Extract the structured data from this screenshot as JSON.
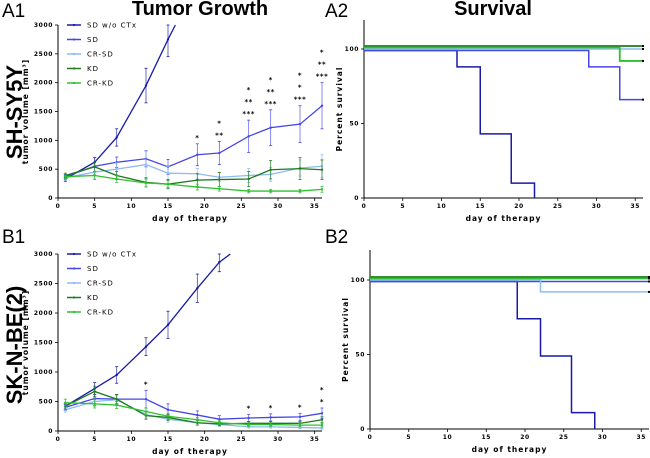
{
  "figure": {
    "column_titles": [
      "Tumor Growth",
      "Survival"
    ],
    "row_labels": [
      "SH-SY5Y",
      "SK-N-BE(2)"
    ],
    "panel_letters": [
      "A1",
      "A2",
      "B1",
      "B2"
    ]
  },
  "series_styles": [
    {
      "name": "SD w/o CTx",
      "color": "#1a1aa8"
    },
    {
      "name": "SD",
      "color": "#4646e6"
    },
    {
      "name": "CR-SD",
      "color": "#8cbcf0"
    },
    {
      "name": "KD",
      "color": "#1e7a1e"
    },
    {
      "name": "CR-KD",
      "color": "#2ec02e"
    }
  ],
  "chart_data": [
    {
      "id": "A1",
      "type": "line",
      "title": "Tumor Growth",
      "row_label": "SH-SY5Y",
      "xlabel": "day of therapy",
      "ylabel": "tumor volume [mm³]",
      "xlim": [
        0,
        36
      ],
      "ylim": [
        0,
        3000
      ],
      "xticks": [
        0,
        5,
        10,
        15,
        20,
        25,
        30,
        35
      ],
      "yticks": [
        0,
        500,
        1000,
        1500,
        2000,
        2500,
        3000
      ],
      "legend": "top-left",
      "series": [
        {
          "name": "SD w/o CTx",
          "x": [
            1,
            5,
            8,
            12,
            15,
            16
          ],
          "y": [
            330,
            620,
            1050,
            1950,
            2750,
            3000
          ],
          "err": [
            40,
            80,
            150,
            300,
            300,
            0
          ]
        },
        {
          "name": "SD",
          "x": [
            1,
            5,
            8,
            12,
            15,
            19,
            22,
            26,
            29,
            33,
            36
          ],
          "y": [
            370,
            550,
            620,
            680,
            540,
            750,
            780,
            1070,
            1220,
            1280,
            1600
          ],
          "err": [
            40,
            150,
            90,
            140,
            130,
            190,
            200,
            280,
            310,
            320,
            400
          ]
        },
        {
          "name": "CR-SD",
          "x": [
            1,
            5,
            8,
            12,
            15,
            19,
            22,
            26,
            29,
            33,
            36
          ],
          "y": [
            350,
            450,
            500,
            580,
            430,
            420,
            360,
            390,
            410,
            520,
            550
          ],
          "err": [
            40,
            120,
            110,
            230,
            120,
            90,
            80,
            120,
            120,
            140,
            200
          ]
        },
        {
          "name": "KD",
          "x": [
            1,
            5,
            8,
            12,
            15,
            19,
            22,
            26,
            29,
            33,
            36
          ],
          "y": [
            390,
            540,
            390,
            270,
            240,
            310,
            320,
            330,
            490,
            510,
            490
          ],
          "err": [
            40,
            80,
            70,
            80,
            80,
            110,
            120,
            130,
            160,
            190,
            170
          ]
        },
        {
          "name": "CR-KD",
          "x": [
            1,
            5,
            8,
            12,
            15,
            19,
            22,
            26,
            29,
            33,
            36
          ],
          "y": [
            370,
            390,
            330,
            260,
            240,
            190,
            160,
            120,
            120,
            120,
            150
          ],
          "err": [
            30,
            70,
            60,
            70,
            60,
            50,
            40,
            30,
            30,
            30,
            50
          ]
        }
      ],
      "annotations": [
        {
          "x": 19,
          "labels": [
            "*"
          ]
        },
        {
          "x": 22,
          "labels": [
            "*",
            "**"
          ]
        },
        {
          "x": 26,
          "labels": [
            "*",
            "**",
            "***"
          ]
        },
        {
          "x": 29,
          "labels": [
            "*",
            "**",
            "***"
          ]
        },
        {
          "x": 33,
          "labels": [
            "*",
            "*",
            "***"
          ]
        },
        {
          "x": 36,
          "labels": [
            "*",
            "**",
            "***"
          ]
        }
      ]
    },
    {
      "id": "A2",
      "type": "line",
      "subtype": "kaplan-meier",
      "title": "Survival",
      "xlabel": "day of therapy",
      "ylabel": "Percent survival",
      "xlim": [
        0,
        36
      ],
      "ylim": [
        0,
        120
      ],
      "xticks": [
        0,
        5,
        10,
        15,
        20,
        25,
        30,
        35
      ],
      "yticks": [
        0,
        50,
        100
      ],
      "series": [
        {
          "name": "SD w/o CTx",
          "steps": [
            [
              0,
              99
            ],
            [
              12,
              88
            ],
            [
              15,
              43
            ],
            [
              19,
              10
            ],
            [
              22,
              0
            ]
          ]
        },
        {
          "name": "SD",
          "steps": [
            [
              0,
              99
            ],
            [
              29,
              88
            ],
            [
              33,
              66
            ],
            [
              36,
              66
            ]
          ]
        },
        {
          "name": "CR-SD",
          "steps": [
            [
              0,
              100
            ],
            [
              36,
              100
            ]
          ]
        },
        {
          "name": "KD",
          "steps": [
            [
              0,
              102
            ],
            [
              36,
              102
            ]
          ]
        },
        {
          "name": "CR-KD",
          "steps": [
            [
              0,
              101
            ],
            [
              33,
              92
            ],
            [
              36,
              92
            ]
          ]
        }
      ]
    },
    {
      "id": "B1",
      "type": "line",
      "row_label": "SK-N-BE(2)",
      "xlabel": "day of therapy",
      "ylabel": "tumor volume [mm³]",
      "xlim": [
        0,
        36
      ],
      "ylim": [
        0,
        3000
      ],
      "xticks": [
        0,
        5,
        10,
        15,
        20,
        25,
        30,
        35
      ],
      "yticks": [
        0,
        500,
        1000,
        1500,
        2000,
        2500,
        3000
      ],
      "legend": "top-left",
      "series": [
        {
          "name": "SD w/o CTx",
          "x": [
            1,
            5,
            8,
            12,
            15,
            19,
            22,
            23.5
          ],
          "y": [
            420,
            720,
            950,
            1430,
            1800,
            2420,
            2860,
            3000
          ],
          "err": [
            50,
            100,
            140,
            150,
            230,
            240,
            160,
            0
          ]
        },
        {
          "name": "SD",
          "x": [
            1,
            5,
            8,
            12,
            15,
            19,
            22,
            26,
            29,
            33,
            36
          ],
          "y": [
            400,
            550,
            540,
            540,
            360,
            270,
            200,
            220,
            230,
            240,
            300
          ],
          "err": [
            50,
            120,
            80,
            150,
            100,
            70,
            60,
            60,
            60,
            60,
            90
          ]
        },
        {
          "name": "CR-SD",
          "x": [
            1,
            5,
            8,
            12,
            15,
            19,
            22,
            26,
            29,
            33,
            36
          ],
          "y": [
            360,
            500,
            530,
            280,
            200,
            140,
            110,
            70,
            70,
            60,
            50
          ],
          "err": [
            40,
            80,
            70,
            60,
            50,
            40,
            30,
            20,
            20,
            20,
            20
          ]
        },
        {
          "name": "KD",
          "x": [
            1,
            5,
            8,
            12,
            15,
            19,
            22,
            26,
            29,
            33,
            36
          ],
          "y": [
            420,
            670,
            540,
            260,
            230,
            140,
            120,
            130,
            130,
            130,
            190
          ],
          "err": [
            50,
            90,
            80,
            60,
            50,
            40,
            30,
            30,
            30,
            30,
            50
          ]
        },
        {
          "name": "CR-KD",
          "x": [
            1,
            5,
            8,
            12,
            15,
            19,
            22,
            26,
            29,
            33,
            36
          ],
          "y": [
            480,
            460,
            440,
            330,
            250,
            190,
            140,
            110,
            110,
            100,
            100
          ],
          "err": [
            60,
            70,
            60,
            60,
            50,
            40,
            30,
            30,
            30,
            30,
            30
          ]
        }
      ],
      "annotations": [
        {
          "x": 12,
          "labels": [
            "*"
          ]
        },
        {
          "x": 26,
          "labels": [
            "*"
          ]
        },
        {
          "x": 29,
          "labels": [
            "*"
          ]
        },
        {
          "x": 33,
          "labels": [
            "*"
          ]
        },
        {
          "x": 36,
          "labels": [
            "*",
            "*"
          ]
        }
      ]
    },
    {
      "id": "B2",
      "type": "line",
      "subtype": "kaplan-meier",
      "xlabel": "day of therapy",
      "ylabel": "Percent survival",
      "xlim": [
        0,
        36
      ],
      "ylim": [
        0,
        120
      ],
      "xticks": [
        0,
        5,
        10,
        15,
        20,
        25,
        30,
        35
      ],
      "yticks": [
        0,
        50,
        100
      ],
      "series": [
        {
          "name": "SD w/o CTx",
          "steps": [
            [
              0,
              99
            ],
            [
              19,
              74
            ],
            [
              22,
              49
            ],
            [
              26,
              11
            ],
            [
              29,
              0
            ]
          ]
        },
        {
          "name": "SD",
          "steps": [
            [
              0,
              99
            ],
            [
              36,
              99
            ]
          ]
        },
        {
          "name": "CR-SD",
          "steps": [
            [
              0,
              100
            ],
            [
              22,
              92
            ],
            [
              36,
              92
            ]
          ]
        },
        {
          "name": "KD",
          "steps": [
            [
              0,
              102
            ],
            [
              36,
              102
            ]
          ]
        },
        {
          "name": "CR-KD",
          "steps": [
            [
              0,
              101
            ],
            [
              36,
              101
            ]
          ]
        }
      ]
    }
  ]
}
